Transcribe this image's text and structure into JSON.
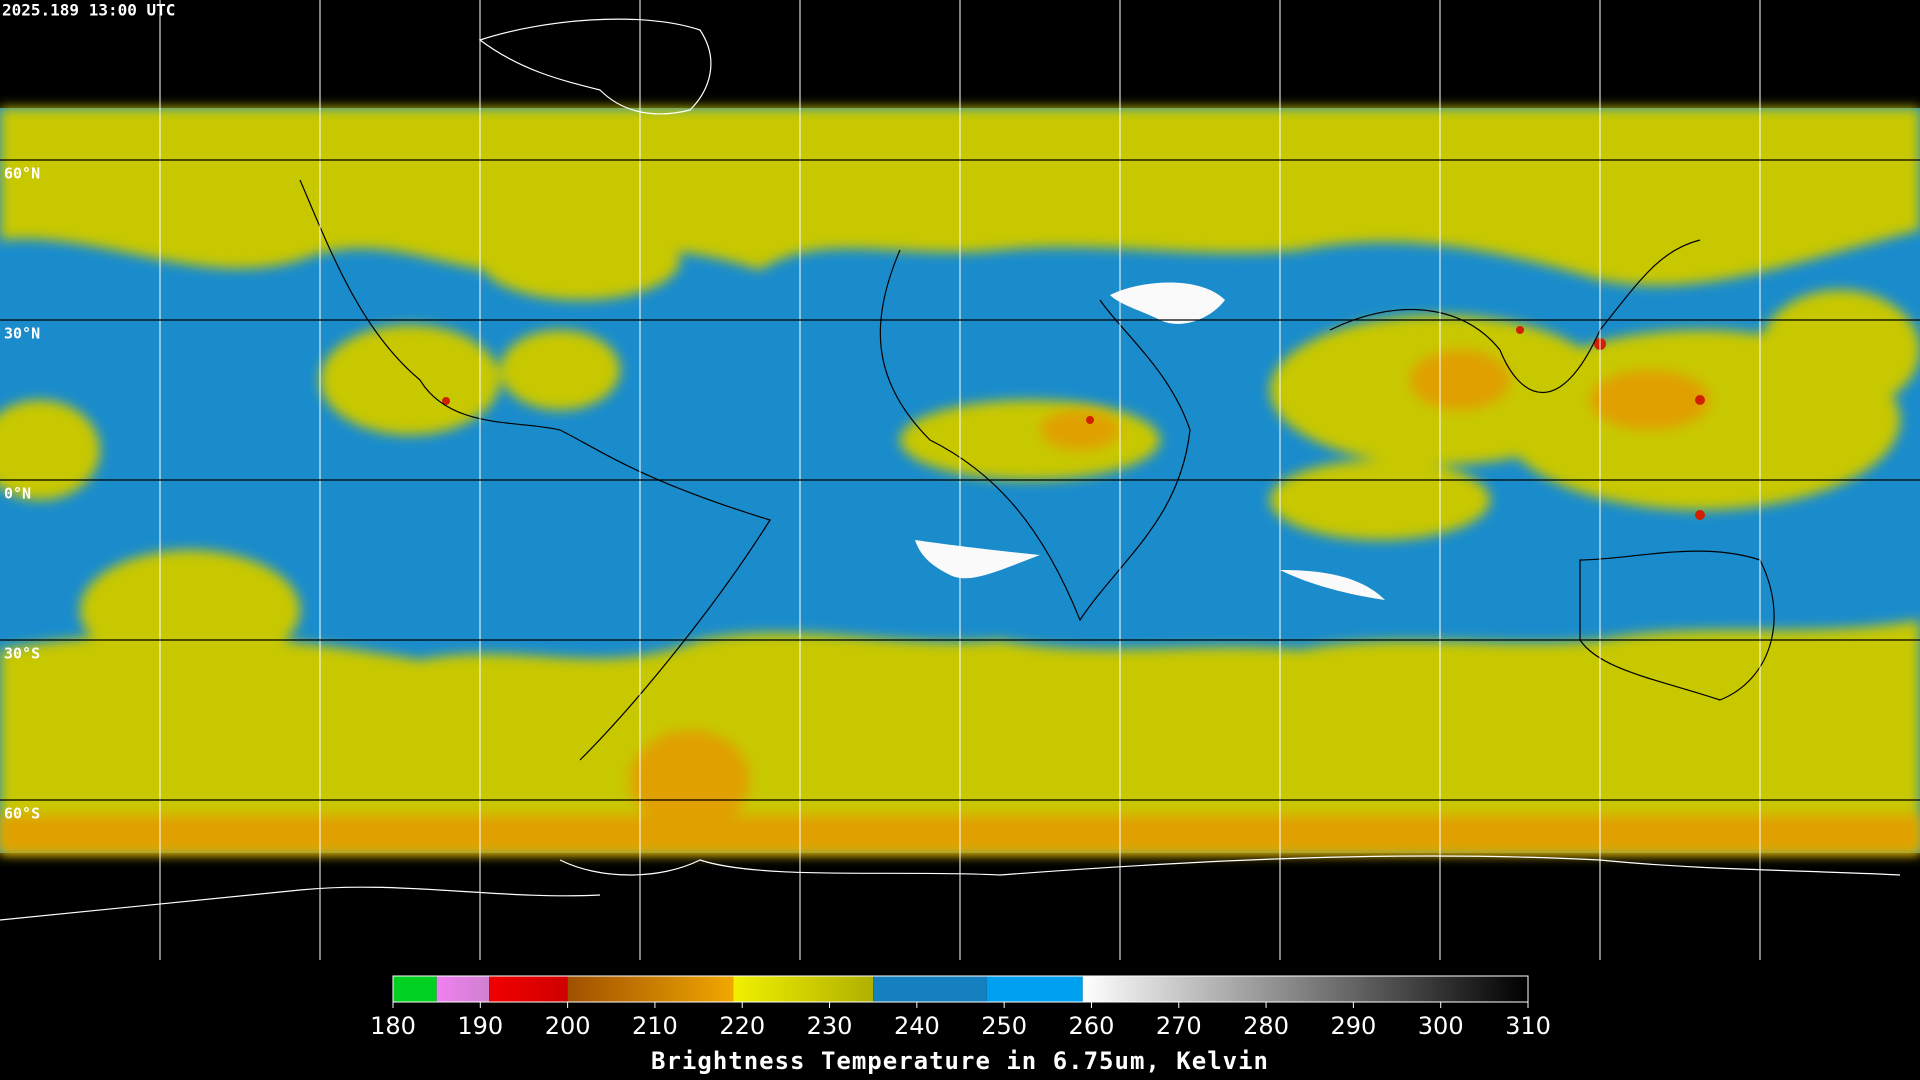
{
  "header": {
    "timestamp": "2025.189 13:00 UTC"
  },
  "map": {
    "lat_lines": [
      {
        "value": 60,
        "label": "60°N"
      },
      {
        "value": 30,
        "label": "30°N"
      },
      {
        "value": 0,
        "label": "0°N"
      },
      {
        "value": -30,
        "label": "30°S"
      },
      {
        "value": -60,
        "label": "60°S"
      }
    ]
  },
  "colorbar": {
    "label": "Brightness Temperature in 6.75um, Kelvin",
    "range": [
      180,
      310
    ],
    "ticks": [
      180,
      190,
      200,
      210,
      220,
      230,
      240,
      250,
      260,
      270,
      280,
      290,
      300,
      310
    ],
    "segments": [
      {
        "from": 180,
        "to": 185,
        "colors": [
          "#00d020",
          "#00d020"
        ]
      },
      {
        "from": 185,
        "to": 191,
        "colors": [
          "#f080f0",
          "#d080d0"
        ]
      },
      {
        "from": 191,
        "to": 200,
        "colors": [
          "#f00000",
          "#d00000"
        ]
      },
      {
        "from": 200,
        "to": 219,
        "colors": [
          "#a05000",
          "#f0a800"
        ]
      },
      {
        "from": 219,
        "to": 235,
        "colors": [
          "#f0f000",
          "#b0b000"
        ]
      },
      {
        "from": 235,
        "to": 248,
        "colors": [
          "#1480c0",
          "#1480c0"
        ]
      },
      {
        "from": 248,
        "to": 259,
        "colors": [
          "#00a0f0",
          "#00a0f0"
        ]
      },
      {
        "from": 259,
        "to": 310,
        "colors": [
          "#ffffff",
          "#000000"
        ]
      }
    ]
  }
}
